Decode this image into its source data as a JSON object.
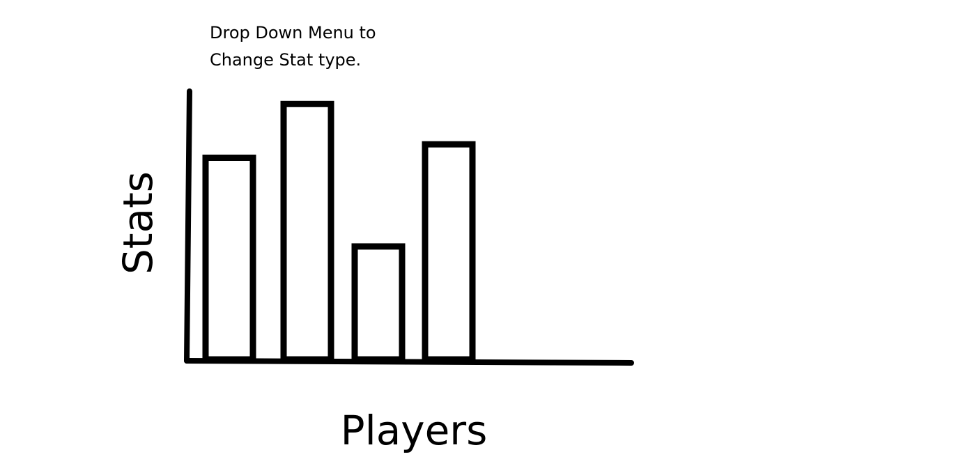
{
  "annotation": {
    "lines": [
      "Drop Down Menu to",
      "Change Stat type."
    ]
  },
  "chart_data": {
    "type": "bar",
    "categories": [
      "",
      "",
      "",
      ""
    ],
    "values": [
      75,
      95,
      42,
      80
    ],
    "title": "",
    "xlabel": "Players",
    "ylabel": "Stats",
    "ylim": [
      0,
      100
    ],
    "grid": false,
    "legend": "none"
  },
  "colors": {
    "stroke": "#000000",
    "background": "#ffffff"
  }
}
